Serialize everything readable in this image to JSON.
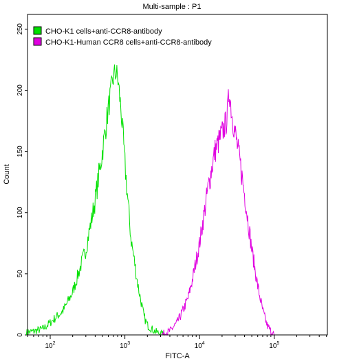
{
  "chart_data": {
    "type": "line",
    "title": "Multi-sample : P1",
    "xlabel": "FITC-A",
    "ylabel": "Count",
    "x_scale": "log",
    "xlim": [
      10,
      300000
    ],
    "ylim": [
      0,
      262
    ],
    "x_ticks": [
      {
        "value": 100,
        "base": "10",
        "exp": "2"
      },
      {
        "value": 1000,
        "base": "10",
        "exp": "3"
      },
      {
        "value": 10000,
        "base": "10",
        "exp": "4"
      },
      {
        "value": 100000,
        "base": "10",
        "exp": "5"
      }
    ],
    "y_ticks": [
      0,
      50,
      100,
      150,
      200,
      250
    ],
    "grid": false,
    "legend_position": "top-left",
    "series": [
      {
        "name": "CHO-K1 cells+anti-CCR8-antibody",
        "color": "#00e000",
        "x": [
          48,
          60,
          80,
          100,
          150,
          200,
          300,
          400,
          500,
          600,
          700,
          750,
          800,
          850,
          900,
          1000,
          1200,
          1500,
          1800,
          2000,
          2500,
          3000,
          3500
        ],
        "y": [
          2,
          3,
          5,
          10,
          20,
          35,
          70,
          110,
          150,
          185,
          210,
          215,
          210,
          195,
          180,
          140,
          80,
          40,
          15,
          8,
          3,
          1,
          0
        ]
      },
      {
        "name": "CHO-K1-Human CCR8 cells+anti-CCR8-antibody",
        "color": "#e000e0",
        "x": [
          3000,
          4000,
          5000,
          6000,
          7000,
          8000,
          10000,
          13000,
          16000,
          20000,
          23000,
          25000,
          27000,
          30000,
          35000,
          40000,
          50000,
          60000,
          70000,
          80000,
          90000,
          100000
        ],
        "y": [
          0,
          3,
          10,
          20,
          30,
          45,
          75,
          120,
          150,
          165,
          175,
          200,
          180,
          165,
          140,
          115,
          70,
          40,
          20,
          8,
          3,
          0
        ]
      }
    ]
  }
}
